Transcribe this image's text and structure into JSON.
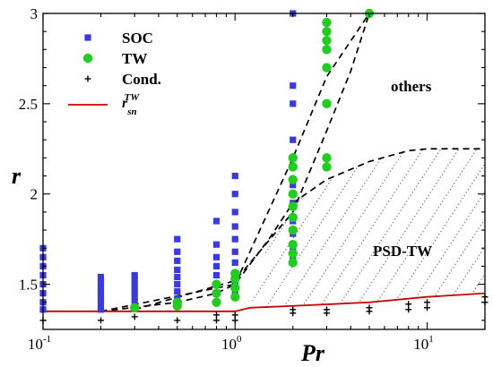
{
  "chart_data": {
    "type": "scatter",
    "xlabel": "Pr",
    "ylabel": "r",
    "xscale": "log",
    "xlim": [
      0.1,
      20
    ],
    "ylim": [
      1.25,
      3.0
    ],
    "xticks": [
      {
        "value": 0.1,
        "base": "10",
        "exp": "-1"
      },
      {
        "value": 1,
        "base": "10",
        "exp": "0"
      },
      {
        "value": 10,
        "base": "10",
        "exp": "1"
      }
    ],
    "yticks": [
      {
        "value": 1.5,
        "label": "1.5"
      },
      {
        "value": 2.0,
        "label": "2"
      },
      {
        "value": 2.5,
        "label": "2.5"
      },
      {
        "value": 3.0,
        "label": "3"
      }
    ],
    "legend": {
      "position": "top-left",
      "soc": "SOC",
      "tw": "TW",
      "cond": "Cond.",
      "curve_main": "r",
      "curve_sub": "sn",
      "curve_sup": "TW"
    },
    "region_labels": {
      "others": "others",
      "psd_tw": "PSD-TW"
    },
    "colors": {
      "soc": "#3a3ae0",
      "tw": "#22cc22",
      "cond": "#000000",
      "curve": "#cc0000"
    },
    "soc": [
      {
        "x": 0.1,
        "y": [
          1.36,
          1.4,
          1.45,
          1.5,
          1.55,
          1.6,
          1.65,
          1.7
        ]
      },
      {
        "x": 0.2,
        "y": [
          1.36,
          1.39,
          1.42,
          1.45,
          1.48,
          1.51,
          1.54
        ]
      },
      {
        "x": 0.3,
        "y": [
          1.37,
          1.4,
          1.43,
          1.46,
          1.49,
          1.52,
          1.55
        ]
      },
      {
        "x": 0.5,
        "y": [
          1.38,
          1.42,
          1.46,
          1.5,
          1.54,
          1.58,
          1.63,
          1.68,
          1.75
        ]
      },
      {
        "x": 0.8,
        "y": [
          1.4,
          1.45,
          1.5,
          1.55,
          1.6,
          1.65,
          1.72,
          1.85
        ]
      },
      {
        "x": 1.0,
        "y": [
          1.45,
          1.5,
          1.56,
          1.62,
          1.68,
          1.75,
          1.82,
          1.9,
          2.0,
          2.1
        ]
      },
      {
        "x": 2.0,
        "y": [
          1.64,
          1.7,
          1.78,
          1.85,
          1.95,
          2.05,
          2.15,
          2.3,
          2.5,
          2.6,
          3.0
        ]
      },
      {
        "x": 3.0,
        "y": [
          2.2,
          2.95
        ]
      }
    ],
    "tw": [
      {
        "x": 0.3,
        "y": [
          1.37
        ]
      },
      {
        "x": 0.5,
        "y": [
          1.38,
          1.4
        ]
      },
      {
        "x": 0.8,
        "y": [
          1.4,
          1.45,
          1.5
        ]
      },
      {
        "x": 1.0,
        "y": [
          1.43,
          1.48,
          1.53,
          1.56
        ]
      },
      {
        "x": 2.0,
        "y": [
          1.62,
          1.67,
          1.72,
          1.8,
          1.87,
          1.93,
          2.0,
          2.08,
          2.15,
          2.2
        ]
      },
      {
        "x": 3.0,
        "y": [
          2.15,
          2.2,
          2.5,
          2.7,
          2.8,
          2.85,
          2.9,
          2.95
        ]
      },
      {
        "x": 5.0,
        "y": [
          3.0
        ]
      }
    ],
    "cond": [
      {
        "x": 0.1,
        "y": [
          1.3
        ]
      },
      {
        "x": 0.2,
        "y": [
          1.3
        ]
      },
      {
        "x": 0.3,
        "y": [
          1.32
        ]
      },
      {
        "x": 0.5,
        "y": [
          1.3
        ]
      },
      {
        "x": 0.8,
        "y": [
          1.3,
          1.33
        ]
      },
      {
        "x": 1.0,
        "y": [
          1.3,
          1.33
        ]
      },
      {
        "x": 2.0,
        "y": [
          1.34,
          1.36
        ]
      },
      {
        "x": 3.0,
        "y": [
          1.34,
          1.36
        ]
      },
      {
        "x": 5.0,
        "y": [
          1.35,
          1.37
        ]
      },
      {
        "x": 8.0,
        "y": [
          1.36,
          1.39
        ]
      },
      {
        "x": 10.0,
        "y": [
          1.37,
          1.4
        ]
      },
      {
        "x": 20.0,
        "y": [
          1.4,
          1.43
        ]
      }
    ],
    "curve_rsn": [
      [
        0.1,
        1.35
      ],
      [
        1.0,
        1.35
      ],
      [
        1.2,
        1.37
      ],
      [
        2.0,
        1.38
      ],
      [
        5.0,
        1.4
      ],
      [
        10.0,
        1.43
      ],
      [
        20.0,
        1.45
      ]
    ],
    "boundary_soc_tw": [
      [
        0.2,
        1.35
      ],
      [
        0.5,
        1.4
      ],
      [
        0.8,
        1.45
      ],
      [
        1.0,
        1.5
      ],
      [
        2.0,
        2.2
      ],
      [
        3.0,
        2.65
      ],
      [
        5.0,
        3.0
      ]
    ],
    "boundary_tw_others": [
      [
        0.3,
        1.36
      ],
      [
        1.0,
        1.52
      ],
      [
        2.0,
        1.9
      ],
      [
        3.0,
        2.35
      ],
      [
        4.0,
        2.68
      ],
      [
        5.0,
        3.0
      ]
    ],
    "boundary_psd_lower": [
      [
        0.2,
        1.35
      ],
      [
        1.0,
        1.5
      ],
      [
        1.5,
        1.75
      ],
      [
        2.0,
        1.95
      ],
      [
        3.0,
        2.08
      ],
      [
        5.0,
        2.18
      ],
      [
        8.0,
        2.24
      ],
      [
        10.0,
        2.25
      ],
      [
        20.0,
        2.25
      ]
    ],
    "psd_region_upper": [
      [
        1.5,
        1.75
      ],
      [
        2.0,
        1.95
      ],
      [
        3.0,
        2.08
      ],
      [
        5.0,
        2.18
      ],
      [
        8.0,
        2.24
      ],
      [
        10.0,
        2.25
      ],
      [
        20.0,
        2.25
      ]
    ],
    "psd_region_lower": [
      [
        1.2,
        1.37
      ],
      [
        2.0,
        1.38
      ],
      [
        5.0,
        1.4
      ],
      [
        10.0,
        1.43
      ],
      [
        20.0,
        1.45
      ]
    ],
    "grid": false
  }
}
